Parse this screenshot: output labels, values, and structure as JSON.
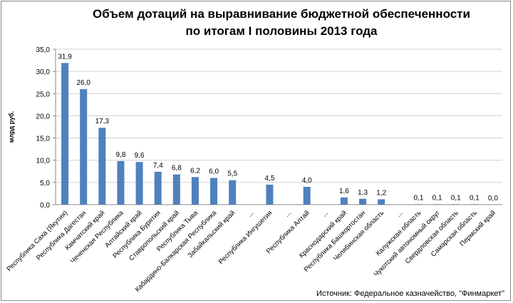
{
  "chart_data": {
    "type": "bar",
    "title_line1": "Объем дотаций на выравнивание бюджетной обеспеченности",
    "title_line2": "по итогам I половины 2013 года",
    "ylabel": "млрд руб.",
    "xlabel": "",
    "ylim": [
      0,
      35
    ],
    "yticks": [
      "0,0",
      "5,0",
      "10,0",
      "15,0",
      "20,0",
      "25,0",
      "30,0",
      "35,0"
    ],
    "grid": true,
    "bar_color": "#4F81BD",
    "categories": [
      "Республика Саха (Якутия)",
      "Республика Дагестан",
      "Камчатский край",
      "Чеченская Республика",
      "Алтайский край",
      "Республика Бурятия",
      "Ставропольский край",
      "Республика Тыва",
      "Кабардино-Балкарская Республика",
      "Забайкальский край",
      "...",
      "Республика Ингушетия",
      "...",
      "Республика Алтай",
      "...",
      "Краснодарский край",
      "Республика Башкортостан",
      "Челябинская область",
      "...",
      "Калужская область",
      "Чукотский автономный округ",
      "Свердловская область",
      "Самарская область",
      "Пермский край"
    ],
    "values": [
      31.9,
      26.0,
      17.3,
      9.8,
      9.6,
      7.4,
      6.8,
      6.2,
      6.0,
      5.5,
      null,
      4.5,
      null,
      4.0,
      null,
      1.6,
      1.3,
      1.2,
      null,
      0.1,
      0.1,
      0.1,
      0.1,
      0.0
    ],
    "labels": [
      "31,9",
      "26,0",
      "17,3",
      "9,8",
      "9,6",
      "7,4",
      "6,8",
      "6,2",
      "6,0",
      "5,5",
      "",
      "4,5",
      "",
      "4,0",
      "",
      "1,6",
      "1,3",
      "1,2",
      "",
      "0,1",
      "0,1",
      "0,1",
      "0,1",
      "0,0"
    ]
  },
  "source": "Источник: Федеральное казначейство, \"Финмаркет\""
}
